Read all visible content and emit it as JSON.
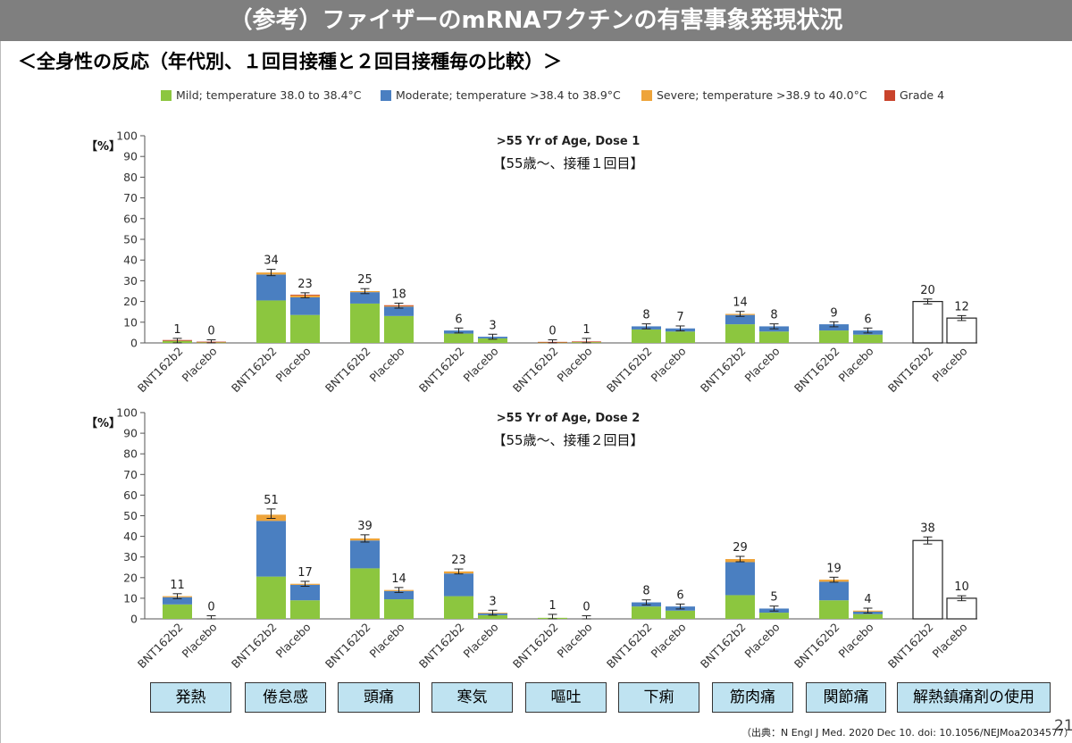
{
  "slide": {
    "title": "（参考）ファイザーのmRNAワクチンの有害事象発現状況",
    "subtitle": "＜全身性の反応（年代別、１回目接種と２回目接種毎の比較）＞",
    "source": "（出典：N Engl J Med. 2020 Dec 10.  doi: 10.1056/NEJMoa2034577）",
    "page_number": "21"
  },
  "legend": [
    {
      "label": "Mild; temperature 38.0 to 38.4°C",
      "color": "#8cc63f"
    },
    {
      "label": "Moderate; temperature >38.4 to 38.9°C",
      "color": "#4a7fc1"
    },
    {
      "label": "Severe; temperature >38.9 to 40.0°C",
      "color": "#eea43a"
    },
    {
      "label": "Grade 4",
      "color": "#c9432b"
    }
  ],
  "categories_jp": [
    "発熱",
    "倦怠感",
    "頭痛",
    "寒気",
    "嘔吐",
    "下痢",
    "筋肉痛",
    "関節痛",
    "解熱鎮痛剤の使用"
  ],
  "chart_data": [
    {
      "type": "bar",
      "title": ">55 Yr of Age, Dose 1",
      "subtitle": "【55歳～、接種１回目】",
      "ylabel": "【%】",
      "ylim": [
        0,
        100
      ],
      "yticks": [
        0,
        10,
        20,
        30,
        40,
        50,
        60,
        70,
        80,
        90,
        100
      ],
      "groups": [
        "BNT162b2",
        "Placebo"
      ],
      "bars": [
        {
          "category": "発熱",
          "group": "BNT162b2",
          "total": 1,
          "mild": 1,
          "moderate": 0,
          "severe": 0,
          "grade4": 0.4
        },
        {
          "category": "発熱",
          "group": "Placebo",
          "total": 0,
          "mild": 0.3,
          "moderate": 0,
          "severe": 0,
          "grade4": 0.3
        },
        {
          "category": "倦怠感",
          "group": "BNT162b2",
          "total": 34,
          "mild": 20.5,
          "moderate": 12.5,
          "severe": 1,
          "grade4": 0
        },
        {
          "category": "倦怠感",
          "group": "Placebo",
          "total": 23,
          "mild": 13.5,
          "moderate": 8.5,
          "severe": 1,
          "grade4": 0.3
        },
        {
          "category": "頭痛",
          "group": "BNT162b2",
          "total": 25,
          "mild": 19,
          "moderate": 5.5,
          "severe": 0.5,
          "grade4": 0
        },
        {
          "category": "頭痛",
          "group": "Placebo",
          "total": 18,
          "mild": 13,
          "moderate": 4.5,
          "severe": 0.5,
          "grade4": 0.2
        },
        {
          "category": "寒気",
          "group": "BNT162b2",
          "total": 6,
          "mild": 4.5,
          "moderate": 1.5,
          "severe": 0,
          "grade4": 0
        },
        {
          "category": "寒気",
          "group": "Placebo",
          "total": 3,
          "mild": 2.2,
          "moderate": 0.8,
          "severe": 0,
          "grade4": 0
        },
        {
          "category": "嘔吐",
          "group": "BNT162b2",
          "total": 0,
          "mild": 0.3,
          "moderate": 0,
          "severe": 0,
          "grade4": 0.2
        },
        {
          "category": "嘔吐",
          "group": "Placebo",
          "total": 1,
          "mild": 0.4,
          "moderate": 0,
          "severe": 0,
          "grade4": 0.3
        },
        {
          "category": "下痢",
          "group": "BNT162b2",
          "total": 8,
          "mild": 6.5,
          "moderate": 1.5,
          "severe": 0,
          "grade4": 0
        },
        {
          "category": "下痢",
          "group": "Placebo",
          "total": 7,
          "mild": 5.5,
          "moderate": 1.5,
          "severe": 0,
          "grade4": 0
        },
        {
          "category": "筋肉痛",
          "group": "BNT162b2",
          "total": 14,
          "mild": 9,
          "moderate": 4.5,
          "severe": 0.5,
          "grade4": 0
        },
        {
          "category": "筋肉痛",
          "group": "Placebo",
          "total": 8,
          "mild": 5.5,
          "moderate": 2.5,
          "severe": 0,
          "grade4": 0
        },
        {
          "category": "関節痛",
          "group": "BNT162b2",
          "total": 9,
          "mild": 6,
          "moderate": 3,
          "severe": 0,
          "grade4": 0
        },
        {
          "category": "関節痛",
          "group": "Placebo",
          "total": 6,
          "mild": 4,
          "moderate": 2,
          "severe": 0,
          "grade4": 0
        },
        {
          "category": "解熱鎮痛剤の使用",
          "group": "BNT162b2",
          "total": 20,
          "outline": true
        },
        {
          "category": "解熱鎮痛剤の使用",
          "group": "Placebo",
          "total": 12,
          "outline": true
        }
      ]
    },
    {
      "type": "bar",
      "title": ">55 Yr of Age, Dose 2",
      "subtitle": "【55歳～、接種２回目】",
      "ylabel": "【%】",
      "ylim": [
        0,
        100
      ],
      "yticks": [
        0,
        10,
        20,
        30,
        40,
        50,
        60,
        70,
        80,
        90,
        100
      ],
      "groups": [
        "BNT162b2",
        "Placebo"
      ],
      "bars": [
        {
          "category": "発熱",
          "group": "BNT162b2",
          "total": 11,
          "mild": 7,
          "moderate": 3.5,
          "severe": 0.5,
          "grade4": 0
        },
        {
          "category": "発熱",
          "group": "Placebo",
          "total": 0,
          "mild": 0,
          "moderate": 0,
          "severe": 0,
          "grade4": 0
        },
        {
          "category": "倦怠感",
          "group": "BNT162b2",
          "total": 51,
          "mild": 20.5,
          "moderate": 27,
          "severe": 3,
          "grade4": 0
        },
        {
          "category": "倦怠感",
          "group": "Placebo",
          "total": 17,
          "mild": 9,
          "moderate": 7.5,
          "severe": 0.5,
          "grade4": 0
        },
        {
          "category": "頭痛",
          "group": "BNT162b2",
          "total": 39,
          "mild": 24.5,
          "moderate": 13.5,
          "severe": 1,
          "grade4": 0
        },
        {
          "category": "頭痛",
          "group": "Placebo",
          "total": 14,
          "mild": 9.5,
          "moderate": 4,
          "severe": 0.5,
          "grade4": 0
        },
        {
          "category": "寒気",
          "group": "BNT162b2",
          "total": 23,
          "mild": 11,
          "moderate": 11,
          "severe": 1,
          "grade4": 0
        },
        {
          "category": "寒気",
          "group": "Placebo",
          "total": 3,
          "mild": 1.8,
          "moderate": 0.9,
          "severe": 0.3,
          "grade4": 0
        },
        {
          "category": "嘔吐",
          "group": "BNT162b2",
          "total": 1,
          "mild": 0.5,
          "moderate": 0,
          "severe": 0,
          "grade4": 0
        },
        {
          "category": "嘔吐",
          "group": "Placebo",
          "total": 0,
          "mild": 0,
          "moderate": 0,
          "severe": 0,
          "grade4": 0
        },
        {
          "category": "下痢",
          "group": "BNT162b2",
          "total": 8,
          "mild": 6,
          "moderate": 2,
          "severe": 0,
          "grade4": 0
        },
        {
          "category": "下痢",
          "group": "Placebo",
          "total": 6,
          "mild": 4,
          "moderate": 2,
          "severe": 0,
          "grade4": 0
        },
        {
          "category": "筋肉痛",
          "group": "BNT162b2",
          "total": 29,
          "mild": 11.5,
          "moderate": 16,
          "severe": 1.5,
          "grade4": 0
        },
        {
          "category": "筋肉痛",
          "group": "Placebo",
          "total": 5,
          "mild": 3,
          "moderate": 2,
          "severe": 0,
          "grade4": 0
        },
        {
          "category": "関節痛",
          "group": "BNT162b2",
          "total": 19,
          "mild": 9,
          "moderate": 9,
          "severe": 1,
          "grade4": 0
        },
        {
          "category": "関節痛",
          "group": "Placebo",
          "total": 4,
          "mild": 2.3,
          "moderate": 1.2,
          "severe": 0.5,
          "grade4": 0
        },
        {
          "category": "解熱鎮痛剤の使用",
          "group": "BNT162b2",
          "total": 38,
          "outline": true
        },
        {
          "category": "解熱鎮痛剤の使用",
          "group": "Placebo",
          "total": 10,
          "outline": true
        }
      ]
    }
  ]
}
